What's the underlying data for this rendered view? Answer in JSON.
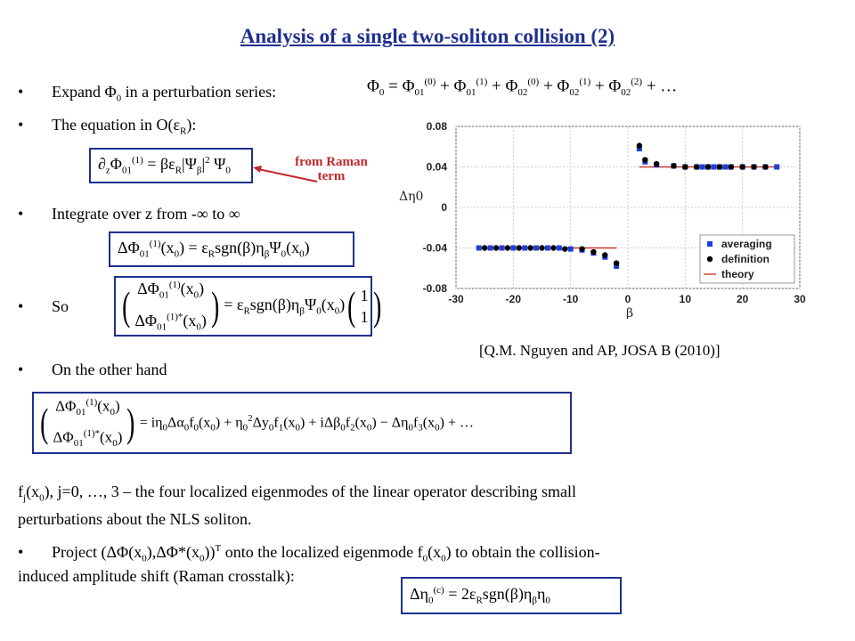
{
  "title": "Analysis of a single two-soliton collision (2)",
  "bullets": {
    "b1_html": "Expand Φ<sub>0</sub> in a perturbation series:",
    "b2_html": "The equation in O(ε<sub>R</sub>):",
    "b3": "Integrate over z from -∞ to ∞",
    "b4": "So",
    "b5": "On the other hand",
    "b6_html": "Project (ΔΦ(x<sub>0</sub>),ΔΦ*(x<sub>0</sub>))<sup>T</sup> onto the localized eigenmode f<sub>0</sub>(x<sub>0</sub>) to obtain the collision-",
    "b6_cont": "induced amplitude shift (Raman crosstalk):"
  },
  "paragraph": {
    "line1_html": "f<sub>j</sub>(x<sub>0</sub>), j=0, …, 3 – the four localized eigenmodes of the linear operator describing small",
    "line2": "perturbations about the NLS soliton."
  },
  "annotation": {
    "line1": "from Raman",
    "line2": "term"
  },
  "equations": {
    "series_html": "Φ<sub>0</sub> = Φ<sub>01</sub><sup>(0)</sup> + Φ<sub>01</sub><sup>(1)</sup> + Φ<sub>02</sub><sup>(0)</sup> + Φ<sub>02</sub><sup>(1)</sup> + Φ<sub>02</sub><sup>(2)</sup> + …",
    "eq1_html": "∂<sub>z</sub>Φ<sub>01</sub><sup>(1)</sup> = βε<sub>R</sub>|Ψ<sub>β</sub>|<sup>2</sup> Ψ<sub>0</sub>",
    "eq2_html": "ΔΦ<sub>01</sub><sup>(1)</sup>(x<sub>0</sub>) = ε<sub>R</sub>sgn(β)η<sub>β</sub>Ψ<sub>0</sub>(x<sub>0</sub>)",
    "eq3_left_top_html": "ΔΦ<sub>01</sub><sup>(1)</sup>(x<sub>0</sub>)",
    "eq3_left_bot_html": "ΔΦ<sub>01</sub><sup>(1)*</sup>(x<sub>0</sub>)",
    "eq3_mid_html": "= ε<sub>R</sub>sgn(β)η<sub>β</sub>Ψ<sub>0</sub>(x<sub>0</sub>)",
    "eq3_vec": [
      "1",
      "1"
    ],
    "eq4_rhs_html": "= iη<sub>0</sub>Δα<sub>0</sub>f<sub>0</sub>(x<sub>0</sub>) + η<sub>0</sub><sup>2</sup>Δy<sub>0</sub>f<sub>1</sub>(x<sub>0</sub>) + iΔβ<sub>0</sub>f<sub>2</sub>(x<sub>0</sub>) − Δη<sub>0</sub>f<sub>3</sub>(x<sub>0</sub>) + …",
    "eq5_html": "Δη<sub>0</sub><sup>(c)</sup> = 2ε<sub>R</sub>sgn(β)η<sub>β</sub>η<sub>0</sub>"
  },
  "caption": "[Q.M. Nguyen and AP, JOSA B (2010)]",
  "colors": {
    "title": "#1f2f8f",
    "box_border": "#1f2f8f",
    "annotation": "#c0282d",
    "averaging": "#1f3fd6",
    "definition": "#000000",
    "theory": "#d0352b"
  },
  "chart_data": {
    "type": "scatter",
    "xlabel": "β",
    "ylabel": "Δη0",
    "xlim": [
      -30,
      30
    ],
    "ylim": [
      -0.08,
      0.08
    ],
    "xticks": [
      "-30",
      "-20",
      "-10",
      "0",
      "10",
      "20",
      "30"
    ],
    "yticks": [
      "0.08",
      "0.04",
      "0",
      "-0.04",
      "-0.08"
    ],
    "grid": true,
    "legend_position": "bottom-right",
    "series": [
      {
        "name": "averaging",
        "marker": "square",
        "x": [
          -26,
          -24,
          -22,
          -20,
          -18,
          -16,
          -14,
          -12,
          -10,
          -8,
          -6,
          -4,
          -2,
          2,
          3,
          5,
          8,
          10,
          12,
          13,
          14,
          15,
          16,
          17,
          18,
          20,
          22,
          24,
          26
        ],
        "y": [
          -0.04,
          -0.04,
          -0.04,
          -0.04,
          -0.04,
          -0.04,
          -0.04,
          -0.04,
          -0.041,
          -0.042,
          -0.045,
          -0.049,
          -0.058,
          0.058,
          0.045,
          0.042,
          0.041,
          0.04,
          0.04,
          0.04,
          0.04,
          0.04,
          0.04,
          0.04,
          0.04,
          0.04,
          0.04,
          0.04,
          0.04
        ]
      },
      {
        "name": "definition",
        "marker": "circle",
        "x": [
          -25,
          -23,
          -21,
          -19,
          -17,
          -15,
          -13,
          -11,
          -8,
          -6,
          -4,
          -2,
          2,
          3,
          5,
          8,
          10,
          12,
          14,
          16,
          18,
          20,
          22,
          24
        ],
        "y": [
          -0.04,
          -0.04,
          -0.04,
          -0.04,
          -0.04,
          -0.04,
          -0.04,
          -0.041,
          -0.041,
          -0.044,
          -0.047,
          -0.055,
          0.061,
          0.047,
          0.043,
          0.041,
          0.04,
          0.04,
          0.04,
          0.04,
          0.04,
          0.04,
          0.04,
          0.04
        ]
      },
      {
        "name": "theory",
        "marker": "line",
        "segments": [
          {
            "x": [
              -26,
              -2
            ],
            "y": [
              -0.04,
              -0.04
            ]
          },
          {
            "x": [
              2,
              26
            ],
            "y": [
              0.04,
              0.04
            ]
          }
        ]
      }
    ]
  }
}
